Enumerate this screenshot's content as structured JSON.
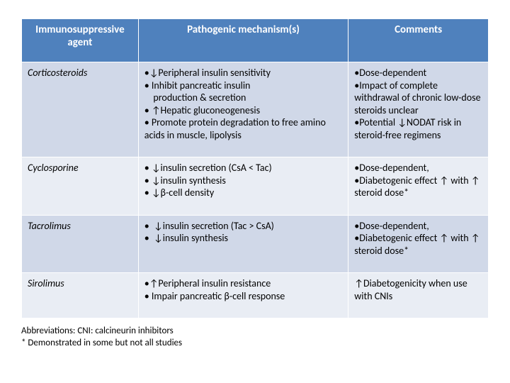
{
  "colors": {
    "header_bg": "#4f81bd",
    "header_text": "#ffffff",
    "row_odd_bg": "#d0d8e8",
    "row_even_bg": "#e9edf4",
    "border": "#ffffff",
    "text": "#000000",
    "page_bg": "#ffffff"
  },
  "layout": {
    "col_widths_pct": [
      25,
      45,
      30
    ],
    "font_family": "Calibri",
    "base_fontsize_pt": 11
  },
  "table": {
    "headers": {
      "agent": "Immunosuppressive agent",
      "mechanism": "Pathogenic mechanism(s)",
      "comments": "Comments"
    },
    "rows": [
      {
        "agent": "Corticosteroids",
        "mechanism": "•↓Peripheral insulin sensitivity\n• Inhibit pancreatic insulin\n    production & secretion\n• ↑Hepatic gluconeogenesis\n• Promote protein degradation to free amino acids in muscle, lipolysis",
        "comments": "•Dose-dependent\n•Impact of complete withdrawal of chronic low-dose steroids unclear\n•Potential ↓NODAT risk in steroid-free regimens"
      },
      {
        "agent": "Cyclosporine",
        "mechanism": "• ↓insulin secretion (CsA < Tac)\n• ↓insulin synthesis\n• ↓β-cell density",
        "comments": "•Dose-dependent,\n•Diabetogenic effect ↑ with ↑ steroid dose*"
      },
      {
        "agent": "Tacrolimus",
        "mechanism": "•  ↓insulin secretion (Tac > CsA)\n•  ↓insulin synthesis",
        "comments": "•Dose-dependent,\n•Diabetogenic effect ↑ with ↑ steroid dose*"
      },
      {
        "agent": "Sirolimus",
        "mechanism": "•↑Peripheral insulin resistance\n• Impair pancreatic β-cell response",
        "comments": "↑Diabetogenicity when use with CNIs"
      }
    ]
  },
  "footnotes": {
    "line1": "Abbreviations: CNI: calcineurin inhibitors",
    "line2": "* Demonstrated in some but not all studies"
  }
}
